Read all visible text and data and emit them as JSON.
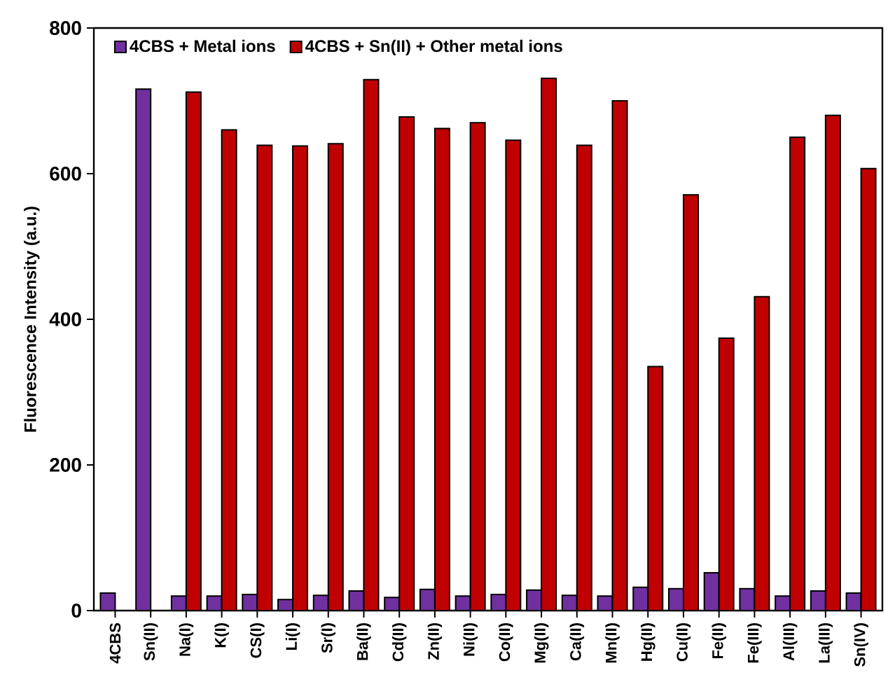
{
  "chart_data": {
    "type": "bar",
    "ylabel": "Fluorescence Intensity (a.u.)",
    "categories": [
      "4CBS",
      "Sn(II)",
      "Na(I)",
      "K(I)",
      "CS(I)",
      "Li(I)",
      "Sr(I)",
      "Ba(II)",
      "Cd(II)",
      "Zn(II)",
      "Ni(II)",
      "Co(II)",
      "Mg(II)",
      "Ca(II)",
      "Mn(II)",
      "Hg(II)",
      "Cu(II)",
      "Fe(II)",
      "Fe(III)",
      "Al(III)",
      "La(III)",
      "Sn(IV)"
    ],
    "series": [
      {
        "name": "4CBS + Metal ions",
        "color": "#7030a0",
        "values": [
          24,
          716,
          20,
          20,
          22,
          15,
          21,
          27,
          18,
          29,
          20,
          22,
          28,
          21,
          20,
          32,
          30,
          52,
          30,
          20,
          27,
          24
        ]
      },
      {
        "name": "4CBS + Sn(II) + Other metal ions",
        "color": "#c00000",
        "values": [
          null,
          null,
          712,
          660,
          639,
          638,
          641,
          729,
          678,
          662,
          670,
          646,
          731,
          639,
          700,
          335,
          571,
          374,
          431,
          650,
          680,
          607
        ]
      }
    ],
    "ylim": [
      0,
      800
    ],
    "yticks": [
      0,
      200,
      400,
      600,
      800
    ],
    "legend": "top left"
  }
}
